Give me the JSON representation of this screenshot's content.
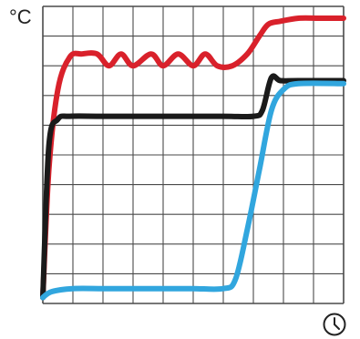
{
  "chart_data": {
    "type": "line",
    "title": "",
    "xlabel": "",
    "ylabel": "°C",
    "x_icon": "clock-icon",
    "xlim": [
      0,
      10
    ],
    "ylim": [
      0,
      10
    ],
    "grid": true,
    "grid_divisions": {
      "x": 10,
      "y": 10
    },
    "series": [
      {
        "color": "#d9212b",
        "x": [
          0,
          0.2,
          0.5,
          0.9,
          1.3,
          1.8,
          2.2,
          2.6,
          3.0,
          3.6,
          4.0,
          4.5,
          5.0,
          5.4,
          5.8,
          6.3,
          6.8,
          7.2,
          7.5,
          7.9,
          8.5,
          9.2,
          10.0
        ],
        "y": [
          0.2,
          4.5,
          7.2,
          8.3,
          8.4,
          8.4,
          8.0,
          8.4,
          8.0,
          8.4,
          8.0,
          8.4,
          8.0,
          8.4,
          8.0,
          8.0,
          8.4,
          9.0,
          9.4,
          9.5,
          9.6,
          9.6,
          9.6
        ]
      },
      {
        "color": "#1a1a1a",
        "x": [
          0,
          0.2,
          0.5,
          0.9,
          2.0,
          4.0,
          6.0,
          7.0,
          7.3,
          7.6,
          7.9,
          8.5,
          10.0
        ],
        "y": [
          0.2,
          5.3,
          6.2,
          6.3,
          6.3,
          6.3,
          6.3,
          6.3,
          6.5,
          7.6,
          7.5,
          7.5,
          7.5
        ]
      },
      {
        "color": "#31a6de",
        "x": [
          0,
          0.3,
          1.0,
          2.0,
          3.0,
          4.0,
          5.0,
          6.0,
          6.4,
          6.8,
          7.2,
          7.6,
          8.0,
          8.5,
          10.0
        ],
        "y": [
          0.2,
          0.4,
          0.5,
          0.5,
          0.5,
          0.5,
          0.5,
          0.5,
          0.8,
          2.5,
          4.5,
          6.5,
          7.2,
          7.4,
          7.4
        ]
      }
    ]
  }
}
